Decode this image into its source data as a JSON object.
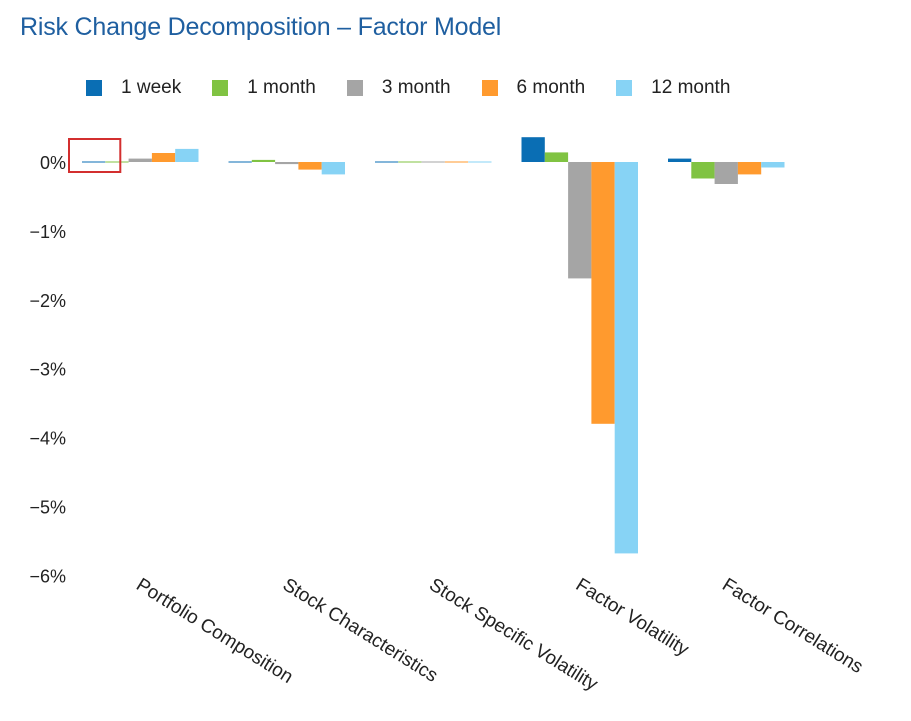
{
  "chart_data": {
    "type": "bar",
    "title": "Risk Change Decomposition – Factor Model",
    "categories": [
      "Portfolio Composition",
      "Stock Characteristics",
      "Stock Specific Volatility",
      "Factor Volatility",
      "Factor  Correlations"
    ],
    "series": [
      {
        "name": "1 week",
        "color": "#0a6eb4",
        "values": [
          -0.01,
          -0.01,
          0.0,
          0.36,
          0.05
        ]
      },
      {
        "name": "1 month",
        "color": "#80c342",
        "values": [
          0.0,
          0.03,
          0.0,
          0.14,
          -0.24
        ]
      },
      {
        "name": "3 month",
        "color": "#a5a5a5",
        "values": [
          0.05,
          -0.03,
          0.01,
          -1.69,
          -0.32
        ]
      },
      {
        "name": "6 month",
        "color": "#ff9a2e",
        "values": [
          0.13,
          -0.11,
          0.0,
          -3.8,
          -0.18
        ]
      },
      {
        "name": "12 month",
        "color": "#87d3f5",
        "values": [
          0.19,
          -0.18,
          -0.01,
          -5.68,
          -0.08
        ]
      }
    ],
    "y_ticks": [
      {
        "value": 0,
        "label": "0%"
      },
      {
        "value": -1,
        "label": "−1%"
      },
      {
        "value": -2,
        "label": "−2%"
      },
      {
        "value": -3,
        "label": "−3%"
      },
      {
        "value": -4,
        "label": "−4%"
      },
      {
        "value": -5,
        "label": "−5%"
      },
      {
        "value": -6,
        "label": "−6%"
      }
    ],
    "ylim": [
      -6,
      0.4
    ],
    "xlabel": "",
    "ylabel": "",
    "grid": false,
    "legend_position": "top",
    "highlight": {
      "category_index": 0,
      "color": "#d32f2f"
    }
  }
}
